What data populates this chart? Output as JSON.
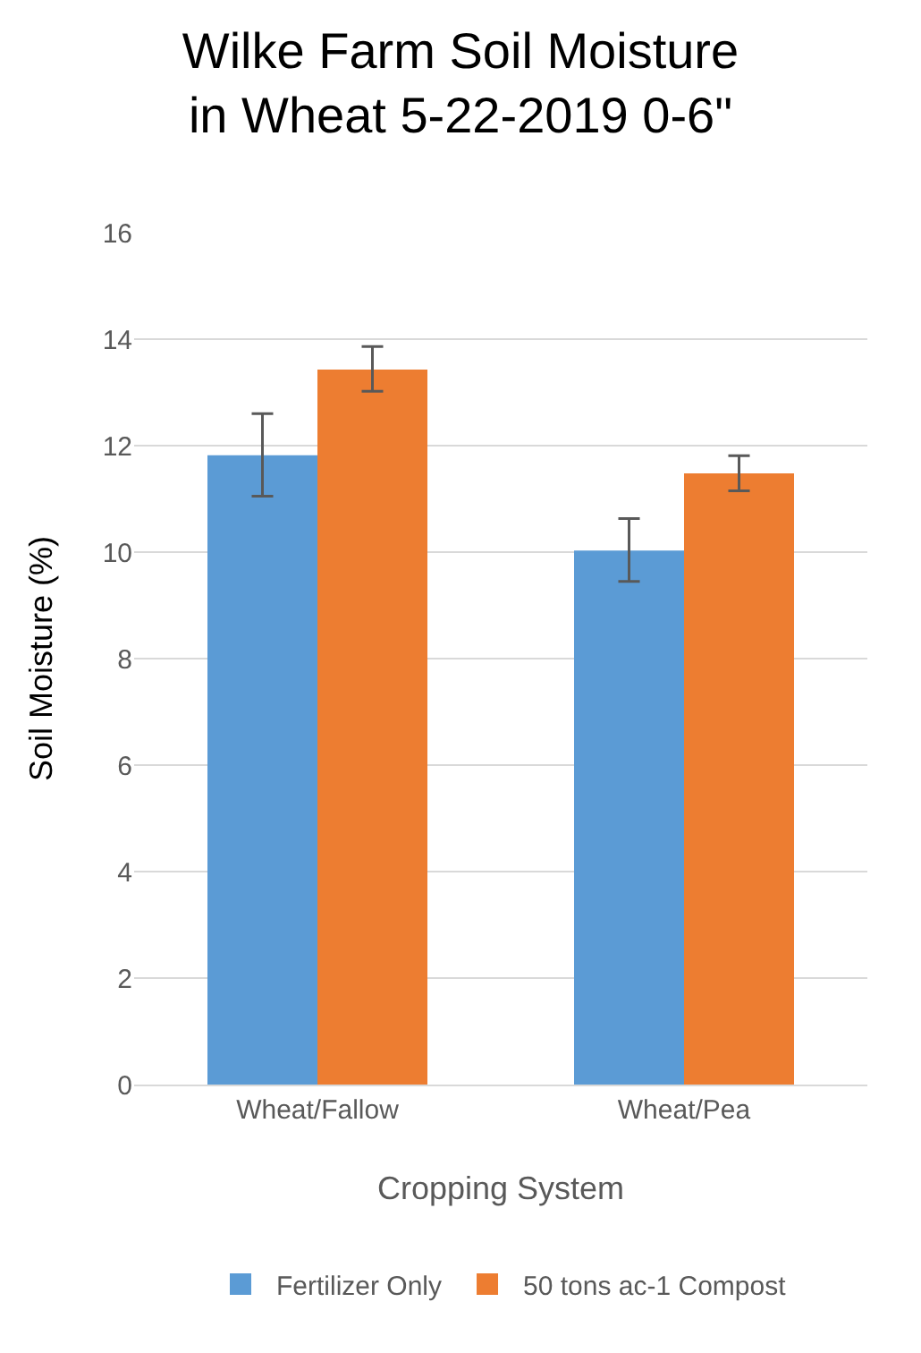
{
  "chart_data": {
    "type": "bar",
    "title": "Wilke Farm Soil Moisture\nin Wheat 5-22-2019 0-6\"",
    "xlabel": "Cropping System",
    "ylabel": "Soil Moisture (%)",
    "categories": [
      "Wheat/Fallow",
      "Wheat/Pea"
    ],
    "series": [
      {
        "name": "Fertilizer Only",
        "color": "#5b9bd5",
        "values": [
          11.82,
          10.03
        ],
        "errors": [
          [
            11.05,
            12.6
          ],
          [
            9.45,
            10.63
          ]
        ]
      },
      {
        "name": "50 tons ac-1 Compost",
        "color": "#ed7d31",
        "values": [
          13.43,
          11.48
        ],
        "errors": [
          [
            13.02,
            13.86
          ],
          [
            11.15,
            11.81
          ]
        ]
      }
    ],
    "ylim": [
      0,
      16
    ],
    "yticks": [
      0,
      2,
      4,
      6,
      8,
      10,
      12,
      14,
      16
    ],
    "grid": "y",
    "legend": "bottom"
  }
}
